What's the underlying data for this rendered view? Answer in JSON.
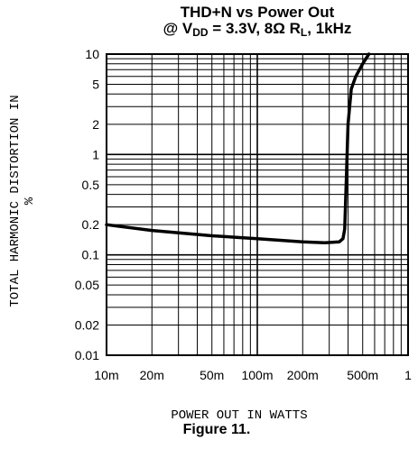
{
  "chart_data": {
    "type": "line",
    "title_line1": "THD+N vs Power Out",
    "title_line2": {
      "prefix": "@ V",
      "sub1": "DD",
      "middle": " = 3.3V, 8Ω R",
      "sub2": "L",
      "suffix": ", 1kHz"
    },
    "xlabel": "POWER OUT IN WATTS",
    "ylabel": "TOTAL HARMONIC DISTORTION IN %",
    "x_scale": "log",
    "y_scale": "log",
    "xlim": [
      0.01,
      1
    ],
    "ylim": [
      0.01,
      10
    ],
    "grid": true,
    "x_ticks": [
      {
        "value": 0.01,
        "label": "10m"
      },
      {
        "value": 0.02,
        "label": "20m"
      },
      {
        "value": 0.05,
        "label": "50m"
      },
      {
        "value": 0.1,
        "label": "100m"
      },
      {
        "value": 0.2,
        "label": "200m"
      },
      {
        "value": 0.5,
        "label": "500m"
      },
      {
        "value": 1,
        "label": "1"
      }
    ],
    "y_ticks": [
      {
        "value": 10,
        "label": "10"
      },
      {
        "value": 5,
        "label": "5"
      },
      {
        "value": 2,
        "label": "2"
      },
      {
        "value": 1,
        "label": "1"
      },
      {
        "value": 0.5,
        "label": "0.5"
      },
      {
        "value": 0.2,
        "label": "0.2"
      },
      {
        "value": 0.1,
        "label": "0.1"
      },
      {
        "value": 0.05,
        "label": "0.05"
      },
      {
        "value": 0.02,
        "label": "0.02"
      },
      {
        "value": 0.01,
        "label": "0.01"
      }
    ],
    "series": [
      {
        "x": [
          0.01,
          0.02,
          0.05,
          0.1,
          0.2,
          0.28,
          0.35,
          0.37,
          0.38,
          0.39,
          0.4,
          0.42,
          0.45,
          0.5,
          0.55
        ],
        "y": [
          0.2,
          0.175,
          0.155,
          0.145,
          0.135,
          0.132,
          0.135,
          0.145,
          0.18,
          0.6,
          2.0,
          4.5,
          6.0,
          8.0,
          10.0
        ]
      }
    ],
    "line_color": "#000000"
  },
  "caption": "Figure 11."
}
